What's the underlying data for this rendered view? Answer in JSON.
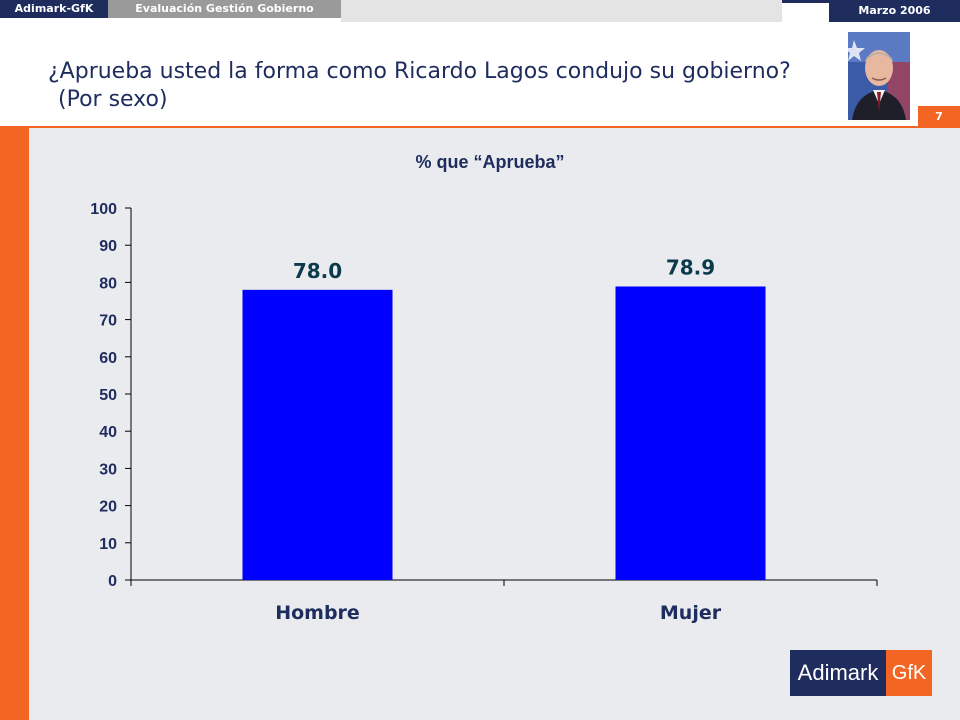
{
  "header": {
    "brand": "Adimark-GfK",
    "section": "Evaluación Gestión Gobierno",
    "date": "Marzo 2006"
  },
  "slide": {
    "title_line1": "¿Aprueba usted la forma como Ricardo Lagos condujo su gobierno?",
    "title_line2": "(Por sexo)",
    "number": "7"
  },
  "colors": {
    "navy": "#1e2c5e",
    "orange": "#f26522",
    "bar": "#0000ff",
    "panel": "#e9ebee"
  },
  "icons": {
    "portrait": "president-photo",
    "logo": "adimark-gfk-logo"
  },
  "chart_data": {
    "type": "bar",
    "title": "% que “Aprueba”",
    "categories": [
      "Hombre",
      "Mujer"
    ],
    "values": [
      78.0,
      78.9
    ],
    "value_labels": [
      "78.0",
      "78.9"
    ],
    "ylim": [
      0,
      100
    ],
    "yticks": [
      0,
      10,
      20,
      30,
      40,
      50,
      60,
      70,
      80,
      90,
      100
    ],
    "grid": false,
    "legend": "none"
  },
  "logo": {
    "left_text": "Adimark",
    "right_text": "GfK"
  }
}
